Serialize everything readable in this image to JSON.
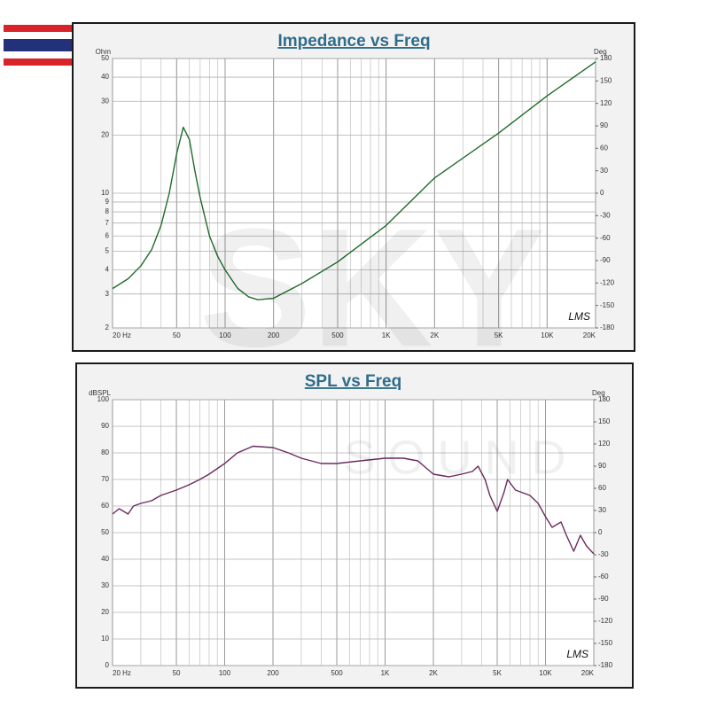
{
  "chart_data": [
    {
      "type": "line",
      "title": "Impedance vs Freq",
      "ylabel": "Ohm",
      "y2label": "Deg",
      "annotation": "LMS",
      "xlog": true,
      "ylog": true,
      "grid": true,
      "xlim": [
        20,
        20000
      ],
      "ylim": [
        2,
        50
      ],
      "y2lim": [
        -180,
        180
      ],
      "xticks": [
        {
          "value": 20,
          "label": "20 Hz"
        },
        50,
        100,
        200,
        500,
        {
          "value": 1000,
          "label": "1K"
        },
        {
          "value": 2000,
          "label": "2K"
        },
        {
          "value": 5000,
          "label": "5K"
        },
        {
          "value": 10000,
          "label": "10K"
        },
        {
          "value": 20000,
          "label": "20K"
        }
      ],
      "yticks": [
        2,
        3,
        4,
        5,
        6,
        7,
        8,
        9,
        10,
        20,
        30,
        40,
        50
      ],
      "y2ticks": [
        180,
        150,
        120,
        90,
        60,
        30,
        0,
        -30,
        -60,
        -90,
        -120,
        -150,
        -180
      ],
      "x": [
        20,
        25,
        30,
        35,
        40,
        45,
        50,
        55,
        60,
        65,
        70,
        80,
        90,
        100,
        120,
        140,
        160,
        200,
        300,
        500,
        1000,
        2000,
        5000,
        10000,
        20000
      ],
      "series": [
        {
          "name": "Impedance",
          "color": "#1f6b2a",
          "values": [
            3.2,
            3.6,
            4.2,
            5.1,
            6.8,
            10,
            16,
            22,
            19,
            13,
            9.5,
            6,
            4.7,
            4,
            3.2,
            2.9,
            2.8,
            2.85,
            3.4,
            4.4,
            6.8,
            12,
            20.5,
            32,
            48
          ]
        }
      ]
    },
    {
      "type": "line",
      "title": "SPL vs Freq",
      "ylabel": "dBSPL",
      "y2label": "Deg",
      "annotation": "LMS",
      "xlog": true,
      "ylog": false,
      "grid": true,
      "xlim": [
        20,
        20000
      ],
      "ylim": [
        0,
        100
      ],
      "y2lim": [
        -180,
        180
      ],
      "xticks": [
        {
          "value": 20,
          "label": "20 Hz"
        },
        50,
        100,
        200,
        500,
        {
          "value": 1000,
          "label": "1K"
        },
        {
          "value": 2000,
          "label": "2K"
        },
        {
          "value": 5000,
          "label": "5K"
        },
        {
          "value": 10000,
          "label": "10K"
        },
        {
          "value": 20000,
          "label": "20K"
        }
      ],
      "yticks": [
        0,
        10,
        20,
        30,
        40,
        50,
        60,
        70,
        80,
        90,
        100
      ],
      "y2ticks": [
        180,
        150,
        120,
        90,
        60,
        30,
        0,
        -30,
        -60,
        -90,
        -120,
        -150,
        -180
      ],
      "x": [
        20,
        22,
        25,
        27,
        30,
        35,
        40,
        50,
        60,
        70,
        80,
        100,
        120,
        150,
        200,
        250,
        300,
        400,
        500,
        700,
        1000,
        1300,
        1600,
        2000,
        2500,
        3000,
        3500,
        3800,
        4200,
        4500,
        5000,
        5500,
        5800,
        6500,
        8000,
        9000,
        10000,
        11000,
        12500,
        13500,
        15000,
        16500,
        18000,
        20000
      ],
      "series": [
        {
          "name": "SPL",
          "color": "#6b2a5e",
          "values": [
            57,
            59,
            57,
            60,
            61,
            62,
            64,
            66,
            68,
            70,
            72,
            76,
            80,
            82.5,
            82,
            80,
            78,
            76,
            76,
            77,
            78,
            78,
            77,
            72,
            71,
            72,
            73,
            75,
            70,
            64,
            58,
            65,
            70,
            66,
            64,
            61,
            56,
            52,
            54,
            49,
            43,
            49,
            45,
            42
          ]
        }
      ]
    }
  ],
  "watermark": {
    "main": "SKY",
    "sub": "SOUND"
  }
}
